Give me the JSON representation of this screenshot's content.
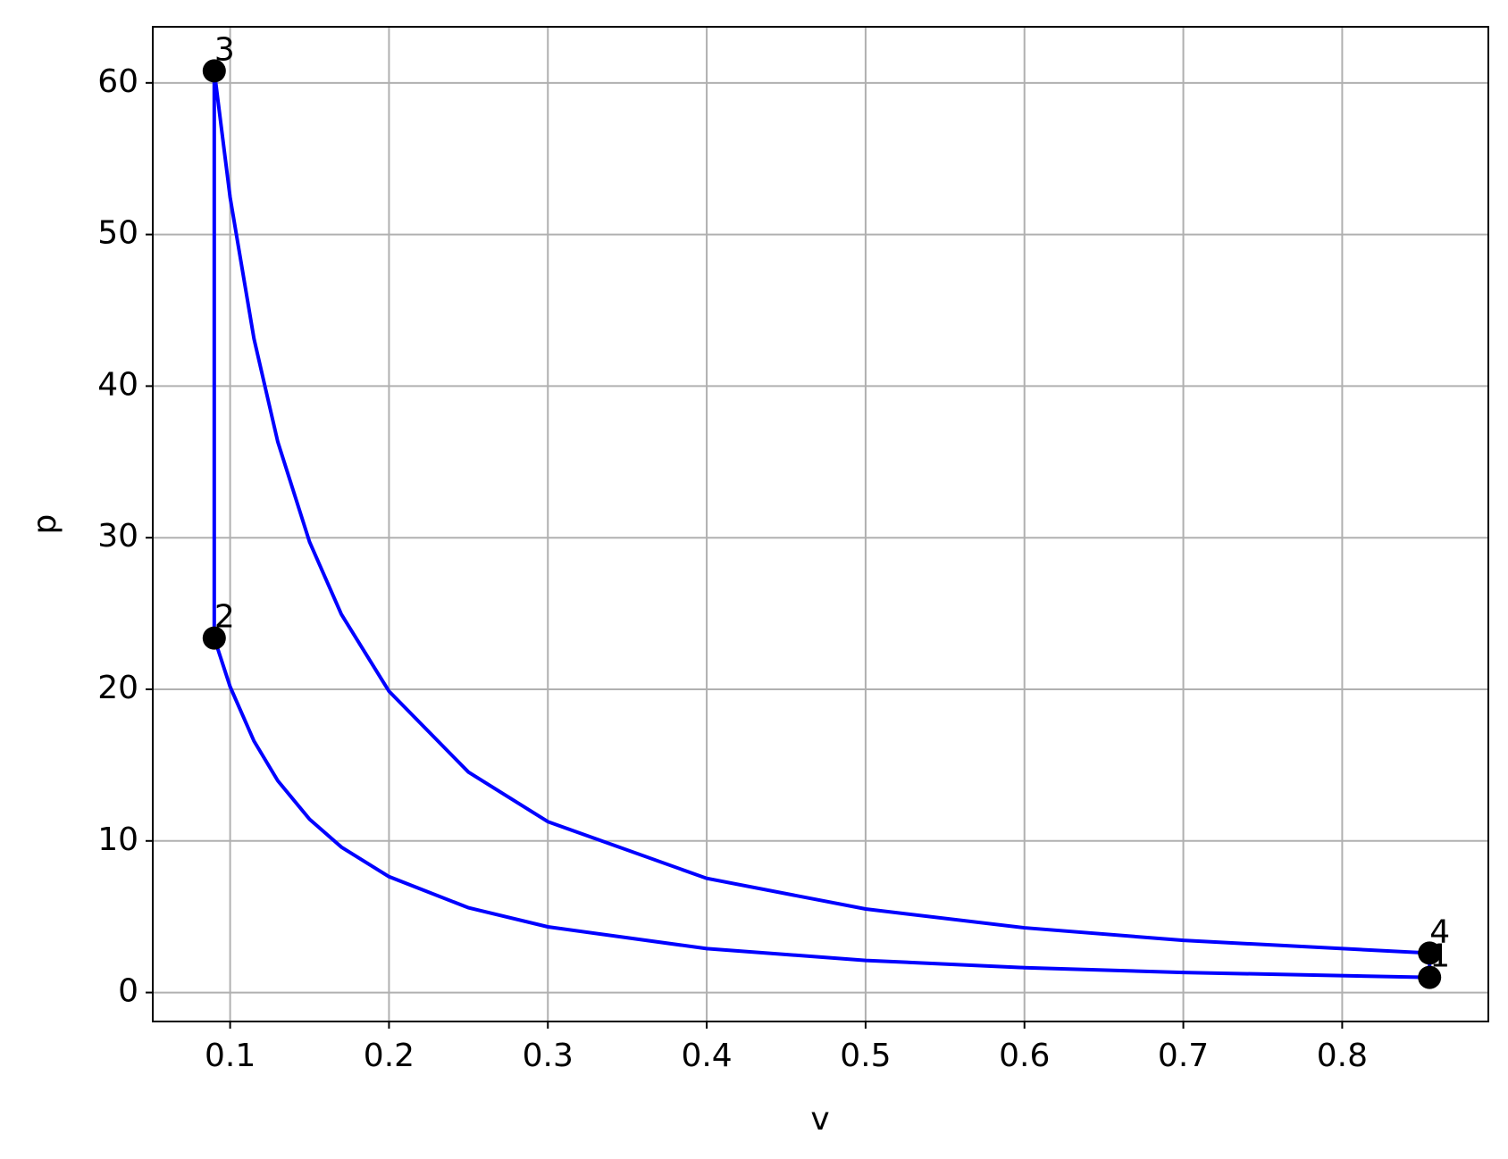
{
  "chart_data": {
    "type": "line",
    "xlabel": "v",
    "ylabel": "p",
    "x": [
      0.855,
      0.7,
      0.6,
      0.5,
      0.4,
      0.3,
      0.25,
      0.2,
      0.17,
      0.15,
      0.13,
      0.115,
      0.1,
      0.09,
      0.09,
      0.1,
      0.115,
      0.13,
      0.15,
      0.17,
      0.2,
      0.25,
      0.3,
      0.4,
      0.5,
      0.6,
      0.7,
      0.855,
      0.855
    ],
    "series": [
      {
        "color": "#0000ff",
        "values": [
          1.0,
          1.323,
          1.642,
          2.119,
          2.896,
          4.333,
          5.593,
          7.643,
          9.596,
          11.43,
          13.97,
          16.59,
          20.17,
          23.38,
          60.79,
          52.44,
          43.13,
          36.32,
          29.72,
          24.95,
          19.87,
          14.54,
          11.27,
          7.53,
          5.51,
          4.27,
          3.44,
          2.6,
          1.0
        ]
      }
    ],
    "points": {
      "color": "#000000",
      "x": [
        0.855,
        0.09,
        0.09,
        0.855
      ],
      "values": [
        1.0,
        23.38,
        60.79,
        2.6
      ],
      "labels": [
        "1",
        "2",
        "3",
        "4"
      ]
    },
    "xlim": [
      0.0513,
      0.892
    ],
    "ylim": [
      -1.91,
      63.7
    ],
    "xticks": [
      0.1,
      0.2,
      0.3,
      0.4,
      0.5,
      0.6,
      0.7,
      0.8
    ],
    "yticks": [
      0,
      10,
      20,
      30,
      40,
      50,
      60
    ],
    "grid": true
  }
}
